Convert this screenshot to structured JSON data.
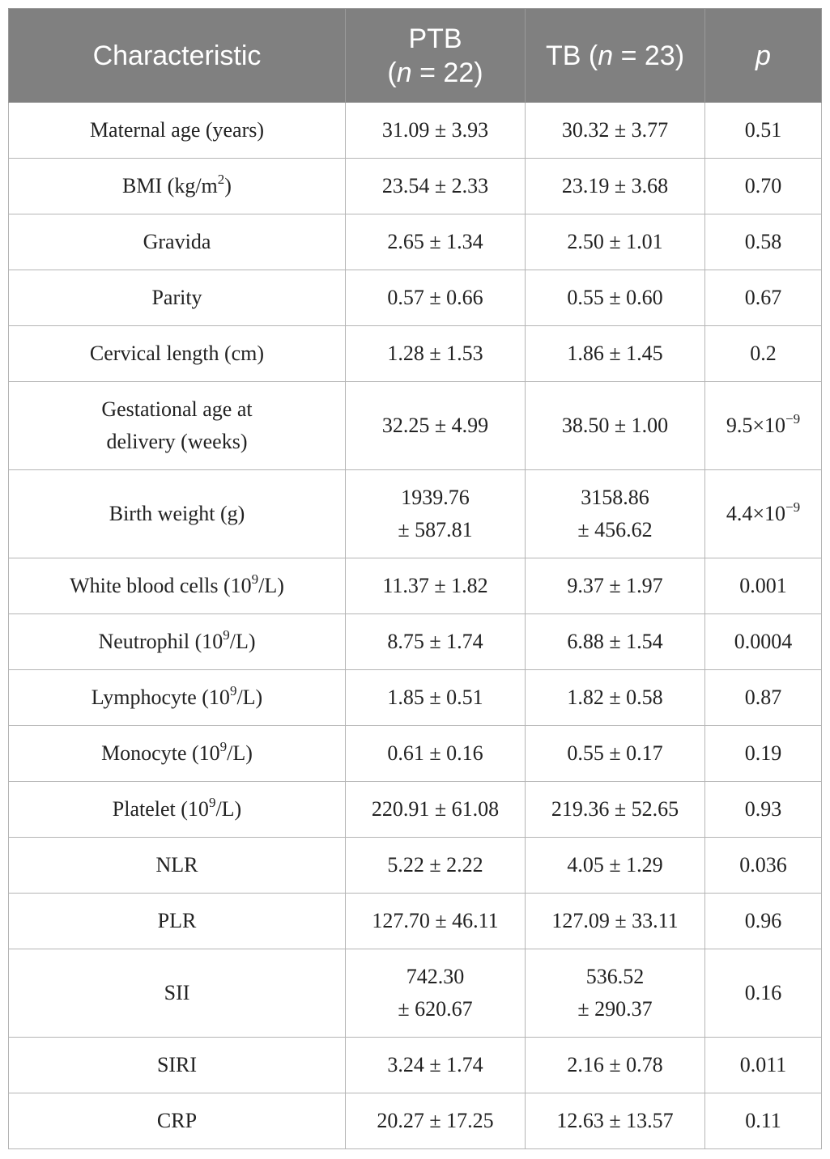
{
  "header": {
    "characteristic": "Characteristic",
    "ptb_label": "PTB",
    "ptb_n_var": "n",
    "ptb_n_value": " = 22)",
    "tb_label": "TB (",
    "tb_n_var": "n",
    "tb_n_value": " = 23)",
    "p": "p"
  },
  "rows": [
    {
      "name": "Maternal age (years)",
      "ptb": "31.09 ± 3.93",
      "tb": "30.32 ± 3.77",
      "p": "0.51"
    },
    {
      "name": "BMI (kg/m",
      "name_sup": "2",
      "name_end": ")",
      "ptb": "23.54 ± 2.33",
      "tb": "23.19 ± 3.68",
      "p": "0.70"
    },
    {
      "name": "Gravida",
      "ptb": "2.65 ± 1.34",
      "tb": "2.50 ± 1.01",
      "p": "0.58"
    },
    {
      "name": "Parity",
      "ptb": "0.57 ± 0.66",
      "tb": "0.55 ± 0.60",
      "p": "0.67"
    },
    {
      "name": "Cervical length (cm)",
      "ptb": "1.28 ± 1.53",
      "tb": "1.86 ± 1.45",
      "p": "0.2"
    },
    {
      "name": "Gestational age at",
      "name_line2": "delivery (weeks)",
      "ptb": "32.25 ± 4.99",
      "tb": "38.50 ± 1.00",
      "p": "9.5×10",
      "p_sup": "−9"
    },
    {
      "name": "Birth weight (g)",
      "ptb": "1939.76",
      "ptb_line2": "± 587.81",
      "tb": "3158.86",
      "tb_line2": "± 456.62",
      "p": "4.4×10",
      "p_sup": "−9"
    },
    {
      "name": "White blood cells (10",
      "name_sup": "9",
      "name_end": "/L)",
      "ptb": "11.37 ± 1.82",
      "tb": "9.37 ± 1.97",
      "p": "0.001"
    },
    {
      "name": "Neutrophil (10",
      "name_sup": "9",
      "name_end": "/L)",
      "ptb": "8.75 ± 1.74",
      "tb": "6.88 ± 1.54",
      "p": "0.0004"
    },
    {
      "name": "Lymphocyte (10",
      "name_sup": "9",
      "name_end": "/L)",
      "ptb": "1.85 ± 0.51",
      "tb": "1.82 ± 0.58",
      "p": "0.87"
    },
    {
      "name": "Monocyte (10",
      "name_sup": "9",
      "name_end": "/L)",
      "ptb": "0.61 ± 0.16",
      "tb": "0.55 ± 0.17",
      "p": "0.19"
    },
    {
      "name": "Platelet (10",
      "name_sup": "9",
      "name_end": "/L)",
      "ptb": "220.91 ± 61.08",
      "tb": "219.36 ± 52.65",
      "p": "0.93"
    },
    {
      "name": "NLR",
      "ptb": "5.22 ± 2.22",
      "tb": "4.05 ± 1.29",
      "p": "0.036"
    },
    {
      "name": "PLR",
      "ptb": "127.70 ± 46.11",
      "tb": "127.09 ± 33.11",
      "p": "0.96"
    },
    {
      "name": "SII",
      "ptb": "742.30",
      "ptb_line2": "± 620.67",
      "tb": "536.52",
      "tb_line2": "± 290.37",
      "p": "0.16"
    },
    {
      "name": "SIRI",
      "ptb": "3.24 ± 1.74",
      "tb": "2.16 ± 0.78",
      "p": "0.011"
    },
    {
      "name": "CRP",
      "ptb": "20.27 ± 17.25",
      "tb": "12.63 ± 13.57",
      "p": "0.11"
    }
  ]
}
